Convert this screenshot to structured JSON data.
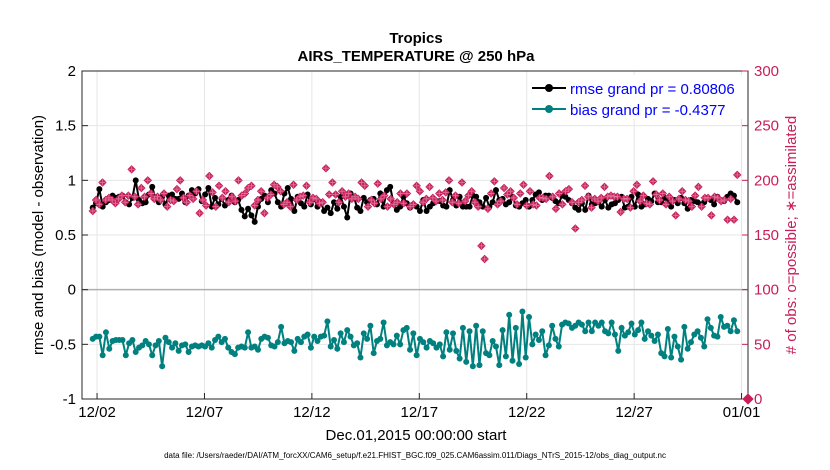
{
  "chart_data": {
    "type": "line",
    "title": "Tropics",
    "subtitle": "AIRS_TEMPERATURE @ 250 hPa",
    "xlabel": "Dec.01,2015 00:00:00 start",
    "ylabel": "rmse and bias (model - observation)",
    "ylabel_right": "# of obs: o=possible; ∗=assimilated",
    "footnote": "data file: /Users/raeder/DAI/ATM_forcXX/CAM6_setup/f.e21.FHIST_BGC.f09_025.CAM6assim.011/Diags_NTrS_2015-12/obs_diag_output.nc",
    "xlim": [
      0.3,
      31.3
    ],
    "ylim": [
      -1,
      2
    ],
    "ylim_right": [
      0,
      300
    ],
    "x_ticks": [
      1,
      6,
      11,
      16,
      21,
      26,
      31
    ],
    "x_tick_labels": [
      "12/02",
      "12/07",
      "12/12",
      "12/17",
      "12/22",
      "12/27",
      "01/01"
    ],
    "y_ticks": [
      -1,
      -0.5,
      0,
      0.5,
      1,
      1.5,
      2
    ],
    "y_tick_labels": [
      "-1",
      "-0.5",
      "0",
      "0.5",
      "1",
      "1.5",
      "2"
    ],
    "y_ticks_right": [
      0,
      50,
      100,
      150,
      200,
      250,
      300
    ],
    "y_tick_labels_right": [
      "0",
      "50",
      "100",
      "150",
      "200",
      "250",
      "300"
    ],
    "zero_line": 0,
    "series": [
      {
        "name": "rmse grand pr = 0.80806",
        "color": "#000000",
        "axis": "left",
        "values": [
          0.75,
          0.79,
          0.92,
          0.76,
          0.8,
          0.82,
          0.86,
          0.84,
          0.85,
          0.86,
          0.8,
          0.78,
          0.84,
          1.0,
          0.82,
          0.79,
          0.8,
          0.87,
          0.94,
          0.83,
          0.8,
          0.85,
          0.78,
          0.86,
          0.87,
          0.83,
          0.83,
          0.88,
          0.8,
          0.86,
          0.91,
          0.88,
          0.92,
          0.81,
          0.87,
          0.93,
          0.76,
          0.84,
          0.78,
          0.83,
          0.77,
          0.82,
          0.86,
          0.8,
          0.82,
          0.73,
          0.67,
          0.74,
          0.68,
          0.62,
          0.76,
          0.83,
          0.86,
          0.8,
          0.91,
          0.88,
          0.8,
          0.76,
          0.88,
          0.93,
          0.83,
          0.72,
          0.85,
          0.79,
          0.76,
          0.87,
          0.78,
          0.83,
          0.76,
          0.8,
          0.72,
          0.75,
          0.7,
          0.8,
          0.74,
          0.85,
          0.76,
          0.66,
          0.88,
          0.85,
          0.75,
          0.72,
          0.84,
          0.8,
          0.82,
          0.83,
          0.78,
          0.88,
          0.76,
          0.91,
          0.94,
          0.79,
          0.73,
          0.76,
          0.85,
          0.79,
          0.75,
          0.78,
          0.76,
          0.72,
          0.82,
          0.72,
          0.76,
          0.79,
          0.81,
          0.81,
          0.77,
          0.76,
          0.91,
          0.82,
          0.77,
          0.85,
          0.76,
          0.76,
          0.76,
          0.86,
          0.85,
          0.8,
          0.76,
          0.84,
          0.76,
          0.8,
          0.91,
          0.82,
          0.83,
          0.78,
          0.8,
          0.85,
          0.77,
          0.76,
          0.79,
          0.82,
          0.76,
          0.82,
          0.87,
          0.89,
          0.82,
          0.86,
          0.86,
          0.84,
          0.81,
          0.79,
          0.86,
          0.85,
          0.82,
          0.79,
          0.75,
          0.73,
          0.79,
          0.73,
          0.86,
          0.78,
          0.79,
          0.8,
          0.76,
          0.82,
          0.75,
          0.78,
          0.79,
          0.82,
          0.85,
          0.75,
          0.76,
          0.85,
          0.76,
          0.87,
          0.76,
          0.78,
          0.83,
          0.81,
          0.88,
          0.8,
          0.8,
          0.84,
          0.83,
          0.76,
          0.82,
          0.79,
          0.84,
          0.79,
          0.74,
          0.82,
          0.81,
          0.8,
          0.78,
          0.8,
          0.84,
          0.82,
          0.78,
          0.85,
          0.82,
          0.81,
          0.85,
          0.88,
          0.86,
          0.8
        ]
      },
      {
        "name": "bias grand pr = -0.4377",
        "color": "#00807f",
        "axis": "left",
        "values": [
          -0.45,
          -0.43,
          -0.43,
          -0.6,
          -0.39,
          -0.54,
          -0.47,
          -0.46,
          -0.46,
          -0.46,
          -0.6,
          -0.49,
          -0.46,
          -0.57,
          -0.53,
          -0.51,
          -0.47,
          -0.5,
          -0.6,
          -0.51,
          -0.47,
          -0.7,
          -0.44,
          -0.48,
          -0.53,
          -0.49,
          -0.56,
          -0.51,
          -0.5,
          -0.57,
          -0.52,
          -0.51,
          -0.52,
          -0.51,
          -0.52,
          -0.49,
          -0.53,
          -0.46,
          -0.43,
          -0.48,
          -0.45,
          -0.53,
          -0.57,
          -0.59,
          -0.53,
          -0.52,
          -0.53,
          -0.39,
          -0.53,
          -0.52,
          -0.55,
          -0.45,
          -0.43,
          -0.44,
          -0.51,
          -0.52,
          -0.48,
          -0.34,
          -0.49,
          -0.47,
          -0.48,
          -0.56,
          -0.45,
          -0.48,
          -0.43,
          -0.41,
          -0.53,
          -0.43,
          -0.47,
          -0.43,
          -0.42,
          -0.29,
          -0.52,
          -0.46,
          -0.54,
          -0.4,
          -0.48,
          -0.37,
          -0.43,
          -0.51,
          -0.49,
          -0.62,
          -0.4,
          -0.45,
          -0.33,
          -0.58,
          -0.47,
          -0.45,
          -0.3,
          -0.51,
          -0.48,
          -0.5,
          -0.42,
          -0.5,
          -0.37,
          -0.35,
          -0.55,
          -0.4,
          -0.6,
          -0.45,
          -0.48,
          -0.53,
          -0.47,
          -0.49,
          -0.53,
          -0.5,
          -0.61,
          -0.39,
          -0.55,
          -0.4,
          -0.56,
          -0.63,
          -0.35,
          -0.66,
          -0.38,
          -0.7,
          -0.33,
          -0.69,
          -0.38,
          -0.58,
          -0.6,
          -0.47,
          -0.52,
          -0.69,
          -0.37,
          -0.61,
          -0.23,
          -0.65,
          -0.35,
          -0.68,
          -0.2,
          -0.62,
          -0.25,
          -0.5,
          -0.41,
          -0.46,
          -0.38,
          -0.6,
          -0.51,
          -0.33,
          -0.45,
          -0.52,
          -0.32,
          -0.3,
          -0.31,
          -0.35,
          -0.33,
          -0.3,
          -0.32,
          -0.38,
          -0.3,
          -0.38,
          -0.3,
          -0.33,
          -0.3,
          -0.38,
          -0.4,
          -0.3,
          -0.41,
          -0.56,
          -0.35,
          -0.42,
          -0.39,
          -0.31,
          -0.41,
          -0.37,
          -0.3,
          -0.45,
          -0.38,
          -0.42,
          -0.47,
          -0.41,
          -0.58,
          -0.61,
          -0.36,
          -0.62,
          -0.43,
          -0.52,
          -0.64,
          -0.34,
          -0.54,
          -0.48,
          -0.41,
          -0.38,
          -0.44,
          -0.52,
          -0.27,
          -0.35,
          -0.42,
          -0.43,
          -0.25,
          -0.34,
          -0.33,
          -0.38,
          -0.28,
          -0.38
        ]
      },
      {
        "name": "# obs possible",
        "color": "#c81e5a",
        "marker": "o",
        "axis": "right",
        "values": [
          172,
          182,
          178,
          198,
          182,
          184,
          182,
          179,
          183,
          186,
          180,
          186,
          210,
          185,
          178,
          193,
          185,
          200,
          188,
          183,
          185,
          182,
          188,
          176,
          182,
          181,
          192,
          200,
          184,
          180,
          186,
          183,
          190,
          170,
          182,
          177,
          204,
          189,
          176,
          195,
          184,
          190,
          180,
          185,
          181,
          200,
          186,
          188,
          193,
          195,
          177,
          182,
          190,
          170,
          184,
          187,
          196,
          194,
          190,
          178,
          180,
          176,
          196,
          182,
          185,
          186,
          195,
          180,
          184,
          183,
          179,
          180,
          211,
          187,
          198,
          187,
          180,
          190,
          185,
          188,
          183,
          185,
          183,
          198,
          195,
          176,
          182,
          179,
          197,
          183,
          186,
          176,
          183,
          178,
          180,
          188,
          179,
          188,
          176,
          178,
          195,
          190,
          180,
          183,
          194,
          184,
          181,
          188,
          182,
          189,
          200,
          180,
          186,
          179,
          198,
          181,
          186,
          190,
          180,
          176,
          140,
          128,
          174,
          188,
          199,
          178,
          181,
          193,
          187,
          190,
          184,
          178,
          188,
          196,
          177,
          190,
          178,
          177,
          184,
          184,
          183,
          204,
          185,
          174,
          188,
          178,
          190,
          192,
          180,
          156,
          180,
          182,
          195,
          185,
          175,
          183,
          181,
          184,
          194,
          185,
          186,
          185,
          185,
          171,
          183,
          183,
          175,
          190,
          196,
          181,
          186,
          179,
          178,
          199,
          187,
          182,
          188,
          178,
          185,
          181,
          168,
          183,
          190,
          182,
          181,
          176,
          186,
          194,
          176,
          184,
          184,
          168,
          185,
          184,
          181,
          182,
          164,
          183,
          164,
          205
        ]
      },
      {
        "name": "# obs assimilated",
        "color": "#c81e5a",
        "marker": "*",
        "axis": "right",
        "values": [
          172,
          182,
          178,
          198,
          182,
          184,
          182,
          179,
          183,
          186,
          180,
          186,
          210,
          185,
          178,
          193,
          185,
          200,
          188,
          183,
          185,
          182,
          188,
          176,
          182,
          181,
          192,
          200,
          184,
          180,
          186,
          183,
          190,
          170,
          182,
          177,
          204,
          189,
          176,
          195,
          184,
          190,
          180,
          185,
          181,
          200,
          186,
          188,
          193,
          195,
          177,
          182,
          190,
          170,
          184,
          187,
          196,
          194,
          190,
          178,
          180,
          176,
          196,
          182,
          185,
          186,
          195,
          180,
          184,
          183,
          179,
          180,
          211,
          187,
          198,
          187,
          180,
          190,
          185,
          188,
          183,
          185,
          183,
          198,
          195,
          176,
          182,
          179,
          197,
          183,
          186,
          176,
          183,
          178,
          180,
          188,
          179,
          188,
          176,
          178,
          195,
          190,
          180,
          183,
          194,
          184,
          181,
          188,
          182,
          189,
          200,
          180,
          186,
          179,
          198,
          181,
          186,
          190,
          180,
          176,
          140,
          128,
          174,
          188,
          199,
          178,
          181,
          193,
          187,
          190,
          184,
          178,
          188,
          196,
          177,
          190,
          178,
          177,
          184,
          184,
          183,
          204,
          185,
          174,
          188,
          178,
          190,
          192,
          180,
          156,
          180,
          182,
          195,
          185,
          175,
          183,
          181,
          184,
          194,
          185,
          186,
          185,
          185,
          171,
          183,
          183,
          175,
          190,
          196,
          181,
          186,
          179,
          178,
          199,
          187,
          182,
          188,
          178,
          185,
          181,
          168,
          183,
          190,
          182,
          181,
          176,
          186,
          194,
          176,
          184,
          184,
          168,
          185,
          184,
          181,
          182,
          164,
          183,
          164,
          205
        ]
      }
    ],
    "obs_axis_floor": 0,
    "legend_position": "top-right"
  }
}
